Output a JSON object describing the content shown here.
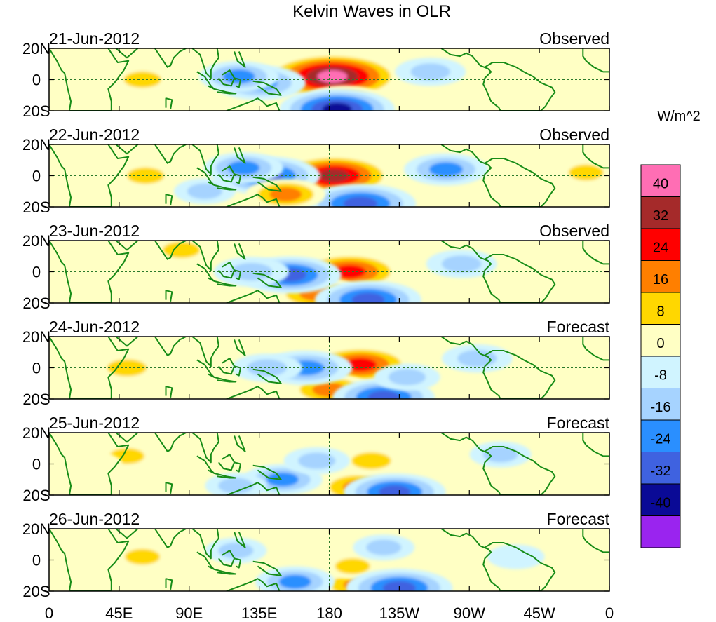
{
  "chart_data": {
    "type": "heatmap",
    "title": "Kelvin Waves in OLR",
    "units_label": "W/m^2",
    "x_ticks": [
      "0",
      "45E",
      "90E",
      "135E",
      "180",
      "135W",
      "90W",
      "45W",
      "0"
    ],
    "y_ticks": [
      "20N",
      "0",
      "20S"
    ],
    "lat_range": [
      -20,
      20
    ],
    "lon_range": [
      0,
      360
    ],
    "colorbar": {
      "levels": [
        "40",
        "32",
        "24",
        "16",
        "8",
        "0",
        "-8",
        "-16",
        "-24",
        "-32",
        "-40"
      ],
      "colors": [
        "#ff6eb4",
        "#a52a2a",
        "#ff0000",
        "#ff7f00",
        "#ffd700",
        "#ffffc4",
        "#d0f4ff",
        "#a6d3ff",
        "#2a8fff",
        "#3f62e0",
        "#0a0a96",
        "#9a24ef"
      ]
    },
    "panels": [
      {
        "date": "21-Jun-2012",
        "status": "Observed",
        "anomalies": [
          {
            "lon": 182,
            "lat": 2,
            "value": 44
          },
          {
            "lon": 190,
            "lat": -14,
            "value": 20
          },
          {
            "lon": 135,
            "lat": -2,
            "value": -24
          },
          {
            "lon": 122,
            "lat": 2,
            "value": -18
          },
          {
            "lon": 185,
            "lat": -19,
            "value": -34
          },
          {
            "lon": 60,
            "lat": 0,
            "value": 12
          },
          {
            "lon": 245,
            "lat": 5,
            "value": -14
          },
          {
            "lon": 20,
            "lat": -15,
            "value": 6
          },
          {
            "lon": 300,
            "lat": 0,
            "value": 6
          },
          {
            "lon": 345,
            "lat": -10,
            "value": 8
          }
        ]
      },
      {
        "date": "22-Jun-2012",
        "status": "Observed",
        "anomalies": [
          {
            "lon": 183,
            "lat": 0,
            "value": 36
          },
          {
            "lon": 140,
            "lat": 0,
            "value": -30
          },
          {
            "lon": 125,
            "lat": 5,
            "value": -18
          },
          {
            "lon": 200,
            "lat": -18,
            "value": -32
          },
          {
            "lon": 62,
            "lat": 0,
            "value": 12
          },
          {
            "lon": 152,
            "lat": -12,
            "value": 18
          },
          {
            "lon": 255,
            "lat": 4,
            "value": -20
          },
          {
            "lon": 345,
            "lat": 2,
            "value": 10
          },
          {
            "lon": 28,
            "lat": 6,
            "value": 8
          },
          {
            "lon": 100,
            "lat": -10,
            "value": -10
          }
        ]
      },
      {
        "date": "23-Jun-2012",
        "status": "Observed",
        "anomalies": [
          {
            "lon": 193,
            "lat": 0,
            "value": 30
          },
          {
            "lon": 172,
            "lat": -14,
            "value": 22
          },
          {
            "lon": 155,
            "lat": -2,
            "value": -28
          },
          {
            "lon": 130,
            "lat": 0,
            "value": -16
          },
          {
            "lon": 205,
            "lat": -18,
            "value": -30
          },
          {
            "lon": 85,
            "lat": 14,
            "value": 12
          },
          {
            "lon": 42,
            "lat": 5,
            "value": 6
          },
          {
            "lon": 265,
            "lat": 5,
            "value": -14
          },
          {
            "lon": 330,
            "lat": 12,
            "value": 6
          },
          {
            "lon": 20,
            "lat": -6,
            "value": 8
          }
        ]
      },
      {
        "date": "24-Jun-2012",
        "status": "Forecast",
        "anomalies": [
          {
            "lon": 200,
            "lat": 2,
            "value": 30
          },
          {
            "lon": 180,
            "lat": -14,
            "value": 20
          },
          {
            "lon": 165,
            "lat": 0,
            "value": -24
          },
          {
            "lon": 140,
            "lat": 0,
            "value": -14
          },
          {
            "lon": 215,
            "lat": -19,
            "value": -28
          },
          {
            "lon": 50,
            "lat": 0,
            "value": 14
          },
          {
            "lon": 88,
            "lat": 14,
            "value": 8
          },
          {
            "lon": 275,
            "lat": 6,
            "value": -14
          },
          {
            "lon": 230,
            "lat": -6,
            "value": -12
          },
          {
            "lon": 20,
            "lat": 10,
            "value": 8
          }
        ]
      },
      {
        "date": "25-Jun-2012",
        "status": "Forecast",
        "anomalies": [
          {
            "lon": 200,
            "lat": -15,
            "value": 22
          },
          {
            "lon": 207,
            "lat": 2,
            "value": 14
          },
          {
            "lon": 150,
            "lat": -10,
            "value": -18
          },
          {
            "lon": 222,
            "lat": -18,
            "value": -28
          },
          {
            "lon": 50,
            "lat": 5,
            "value": 10
          },
          {
            "lon": 172,
            "lat": 2,
            "value": -12
          },
          {
            "lon": 120,
            "lat": -14,
            "value": -10
          },
          {
            "lon": 290,
            "lat": 6,
            "value": -10
          },
          {
            "lon": 30,
            "lat": 0,
            "value": 6
          },
          {
            "lon": 88,
            "lat": 10,
            "value": 6
          }
        ]
      },
      {
        "date": "26-Jun-2012",
        "status": "Forecast",
        "anomalies": [
          {
            "lon": 200,
            "lat": -16,
            "value": 20
          },
          {
            "lon": 195,
            "lat": -4,
            "value": 10
          },
          {
            "lon": 158,
            "lat": -14,
            "value": -18
          },
          {
            "lon": 225,
            "lat": -18,
            "value": -30
          },
          {
            "lon": 60,
            "lat": 2,
            "value": 10
          },
          {
            "lon": 120,
            "lat": 6,
            "value": -10
          },
          {
            "lon": 215,
            "lat": 8,
            "value": -10
          },
          {
            "lon": 300,
            "lat": 2,
            "value": -8
          },
          {
            "lon": 30,
            "lat": -10,
            "value": 6
          },
          {
            "lon": 90,
            "lat": -5,
            "value": 6
          }
        ]
      }
    ]
  }
}
